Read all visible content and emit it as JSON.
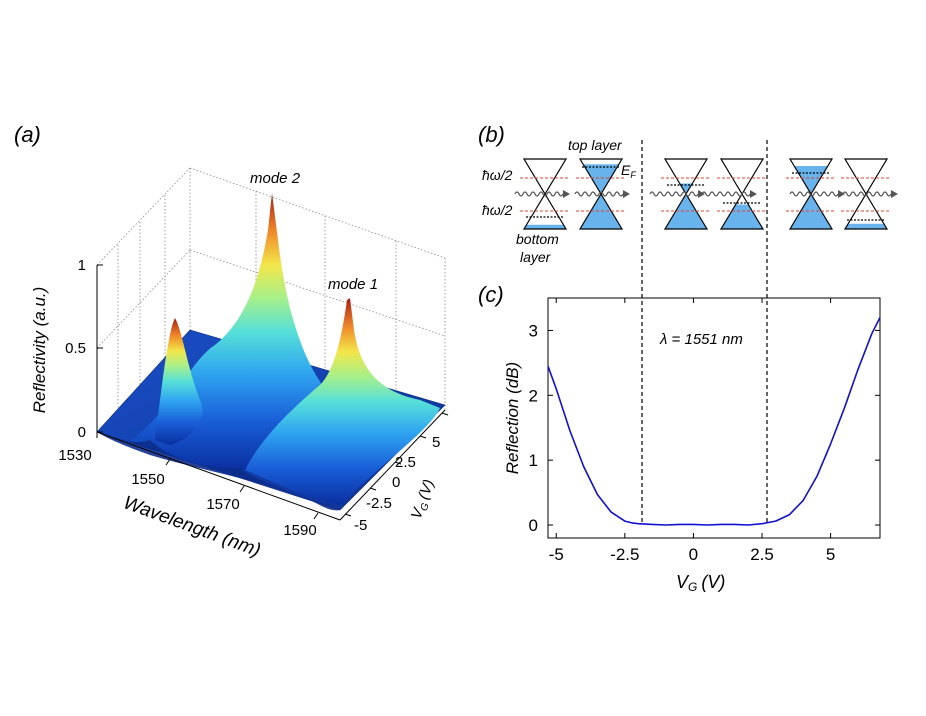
{
  "panels": {
    "a": "(a)",
    "b": "(b)",
    "c": "(c)"
  },
  "colors": {
    "line": "#1010d0",
    "dashed_red": "#e0402a",
    "cone_fill": "#4da6e8",
    "cone_fill_light": "#bfe0f7"
  },
  "panel_b": {
    "top_layer": "top layer",
    "bottom_layer_1": "bottom",
    "bottom_layer_2": "layer",
    "hw_upper": "ħω/2",
    "hw_lower": "ħω/2",
    "ef": "E",
    "ef_sub": "F"
  },
  "chart_data": [
    {
      "type": "surface3d",
      "panel": "a",
      "xlabel": "Wavelength (nm)",
      "ylabel": "V",
      "ylabel_sub": "G",
      "ylabel_unit": "(V)",
      "zlabel": "Reflectivity (a.u.)",
      "x_ticks": [
        "1530",
        "1550",
        "1570",
        "1590"
      ],
      "y_ticks": [
        "-5",
        "-2.5",
        "0",
        "2.5",
        "5"
      ],
      "z_ticks": [
        "0",
        "0.5",
        "1"
      ],
      "xlim": [
        1530,
        1595
      ],
      "ylim": [
        -5,
        7
      ],
      "zlim": [
        0,
        1
      ],
      "annotations": [
        {
          "text": "mode 2",
          "wavelength": 1552,
          "vg": 6.5,
          "value": 1.0
        },
        {
          "text": "mode 1",
          "wavelength": 1578,
          "vg": 6.5,
          "value": 0.55
        }
      ],
      "modes": [
        {
          "name": "mode 2",
          "center_nm": 1552,
          "peak": 1.0
        },
        {
          "name": "mode 1",
          "center_nm": 1578,
          "peak": 0.55
        }
      ]
    },
    {
      "type": "line",
      "panel": "c",
      "xlabel": "V",
      "xlabel_sub": "G",
      "xlabel_unit": "(V)",
      "ylabel": "Reflection (dB)",
      "x_ticks": [
        "-5",
        "-2.5",
        "0",
        "2.5",
        "5"
      ],
      "x_tick_values": [
        -5,
        -2.5,
        0,
        2.5,
        5
      ],
      "y_ticks": [
        "0",
        "1",
        "2",
        "3"
      ],
      "y_tick_values": [
        0,
        1,
        2,
        3
      ],
      "xlim": [
        -5.3,
        6.8
      ],
      "ylim": [
        -0.2,
        3.5
      ],
      "annotation": "λ = 1551 nm",
      "vlines": [
        -2.2,
        2.6
      ],
      "series": [
        {
          "name": "Reflection",
          "x": [
            -5.3,
            -5.0,
            -4.5,
            -4.0,
            -3.5,
            -3.0,
            -2.5,
            -2.2,
            -2.0,
            -1.5,
            -1.0,
            -0.5,
            0,
            0.5,
            1.0,
            1.5,
            2.0,
            2.5,
            3.0,
            3.5,
            4.0,
            4.5,
            5.0,
            5.5,
            6.0,
            6.5,
            6.8
          ],
          "y": [
            2.45,
            2.1,
            1.45,
            0.9,
            0.47,
            0.2,
            0.06,
            0.03,
            0.02,
            0.01,
            0.0,
            0.01,
            0.01,
            0.0,
            0.01,
            0.01,
            0.0,
            0.02,
            0.06,
            0.16,
            0.38,
            0.75,
            1.25,
            1.8,
            2.4,
            2.95,
            3.2
          ]
        }
      ]
    }
  ]
}
